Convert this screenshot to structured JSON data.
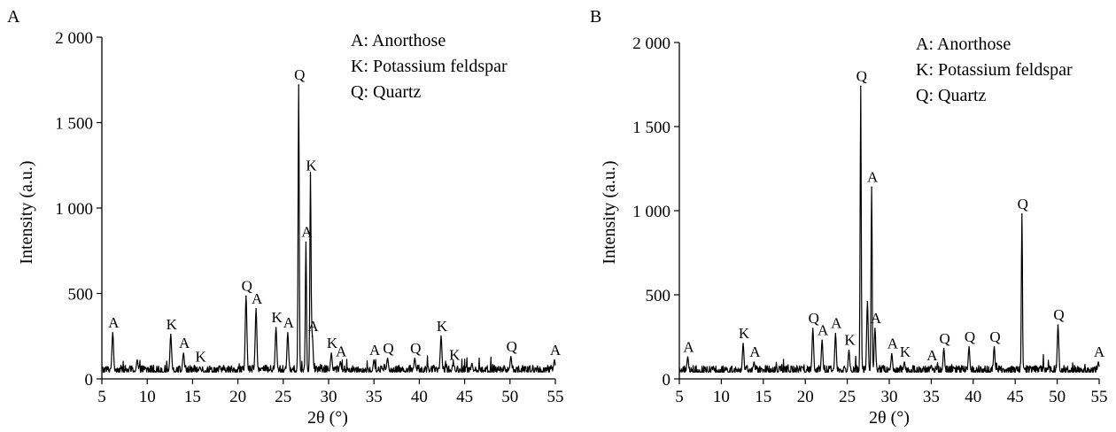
{
  "charts": [
    {
      "panel": "A",
      "legend": [
        "A: Anorthose",
        "K: Potassium feldspar",
        "Q: Quartz"
      ],
      "xlabel": "2θ (°)",
      "ylabel": "Intensity (a.u.)",
      "x_ticks": [
        "5",
        "10",
        "15",
        "20",
        "25",
        "30",
        "35",
        "40",
        "45",
        "50",
        "55"
      ],
      "y_ticks": [
        "0",
        "500",
        "1 000",
        "1 500",
        "2 000"
      ]
    },
    {
      "panel": "B",
      "legend": [
        "A: Anorthose",
        "K: Potassium feldspar",
        "Q: Quartz"
      ],
      "xlabel": "2θ (°)",
      "ylabel": "Intensity (a.u.)",
      "x_ticks": [
        "5",
        "10",
        "15",
        "20",
        "25",
        "30",
        "35",
        "40",
        "45",
        "50",
        "55"
      ],
      "y_ticks": [
        "0",
        "500",
        "1 000",
        "1 500",
        "2 000"
      ]
    }
  ],
  "chart_data": [
    {
      "type": "line",
      "xlim": [
        5,
        55
      ],
      "ylim": [
        0,
        2000
      ],
      "x_ticks": [
        5,
        10,
        15,
        20,
        25,
        30,
        35,
        40,
        45,
        50,
        55
      ],
      "y_ticks": [
        0,
        500,
        1000,
        1500,
        2000
      ],
      "grid": false,
      "legend_position": "top-right",
      "peaks": [
        {
          "x": 6.2,
          "y": 270,
          "label": "A"
        },
        {
          "x": 8.9,
          "y": 110,
          "label": ""
        },
        {
          "x": 12.6,
          "y": 260,
          "label": "K"
        },
        {
          "x": 14.0,
          "y": 150,
          "label": "A"
        },
        {
          "x": 15.8,
          "y": 70,
          "label": "K"
        },
        {
          "x": 20.9,
          "y": 485,
          "label": "Q"
        },
        {
          "x": 22.0,
          "y": 410,
          "label": "A"
        },
        {
          "x": 24.2,
          "y": 300,
          "label": "K"
        },
        {
          "x": 25.5,
          "y": 270,
          "label": "A"
        },
        {
          "x": 26.7,
          "y": 1720,
          "label": "Q"
        },
        {
          "x": 27.5,
          "y": 800,
          "label": "A"
        },
        {
          "x": 28.0,
          "y": 1190,
          "label": "K"
        },
        {
          "x": 28.2,
          "y": 250,
          "label": "A"
        },
        {
          "x": 30.3,
          "y": 150,
          "label": "K"
        },
        {
          "x": 31.3,
          "y": 100,
          "label": "A"
        },
        {
          "x": 35.0,
          "y": 110,
          "label": "A"
        },
        {
          "x": 36.5,
          "y": 120,
          "label": "Q"
        },
        {
          "x": 39.5,
          "y": 120,
          "label": "Q"
        },
        {
          "x": 42.4,
          "y": 250,
          "label": "K"
        },
        {
          "x": 43.8,
          "y": 80,
          "label": "K"
        },
        {
          "x": 45.8,
          "y": 90,
          "label": ""
        },
        {
          "x": 50.1,
          "y": 130,
          "label": "Q"
        },
        {
          "x": 54.9,
          "y": 110,
          "label": "A"
        }
      ]
    },
    {
      "type": "line",
      "xlim": [
        5,
        55
      ],
      "ylim": [
        0,
        2000
      ],
      "x_ticks": [
        5,
        10,
        15,
        20,
        25,
        30,
        35,
        40,
        45,
        50,
        55
      ],
      "y_ticks": [
        0,
        500,
        1000,
        1500,
        2000
      ],
      "grid": false,
      "legend_position": "top-right",
      "peaks": [
        {
          "x": 6.0,
          "y": 130,
          "label": "A"
        },
        {
          "x": 12.6,
          "y": 210,
          "label": "K"
        },
        {
          "x": 13.9,
          "y": 100,
          "label": "A"
        },
        {
          "x": 20.9,
          "y": 300,
          "label": "Q"
        },
        {
          "x": 22.0,
          "y": 230,
          "label": "A"
        },
        {
          "x": 23.6,
          "y": 270,
          "label": "A"
        },
        {
          "x": 25.2,
          "y": 170,
          "label": "K"
        },
        {
          "x": 26.6,
          "y": 1740,
          "label": "Q"
        },
        {
          "x": 27.4,
          "y": 460,
          "label": ""
        },
        {
          "x": 27.9,
          "y": 1140,
          "label": "A"
        },
        {
          "x": 28.3,
          "y": 300,
          "label": "A"
        },
        {
          "x": 30.3,
          "y": 150,
          "label": "A"
        },
        {
          "x": 31.8,
          "y": 100,
          "label": "K"
        },
        {
          "x": 35.0,
          "y": 80,
          "label": "A"
        },
        {
          "x": 36.5,
          "y": 180,
          "label": "Q"
        },
        {
          "x": 39.5,
          "y": 190,
          "label": "Q"
        },
        {
          "x": 42.5,
          "y": 190,
          "label": "Q"
        },
        {
          "x": 45.8,
          "y": 980,
          "label": "Q"
        },
        {
          "x": 50.1,
          "y": 320,
          "label": "Q"
        },
        {
          "x": 54.9,
          "y": 100,
          "label": "A"
        }
      ]
    }
  ]
}
